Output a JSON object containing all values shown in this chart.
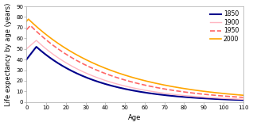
{
  "title": "",
  "xlabel": "Age",
  "ylabel": "Life expectancy by age (years)",
  "xlim": [
    0,
    110
  ],
  "ylim": [
    0,
    90
  ],
  "xticks": [
    0,
    10,
    20,
    30,
    40,
    50,
    60,
    70,
    80,
    90,
    100,
    110
  ],
  "yticks": [
    0,
    10,
    20,
    30,
    40,
    50,
    60,
    70,
    80,
    90
  ],
  "series": [
    {
      "label": "1850",
      "color": "#00008B",
      "linestyle": "solid",
      "linewidth": 1.5,
      "age0_val": 40,
      "peak_age": 5,
      "peak_val": 52,
      "decay_k": 0.032
    },
    {
      "label": "1900",
      "color": "#FFB6C1",
      "linestyle": "solid",
      "linewidth": 1.0,
      "age0_val": 50,
      "peak_age": 5,
      "peak_val": 58,
      "decay_k": 0.03
    },
    {
      "label": "1950",
      "color": "#FF6666",
      "linestyle": "dashed",
      "linewidth": 1.2,
      "age0_val": 68,
      "peak_age": 2,
      "peak_val": 72,
      "decay_k": 0.026
    },
    {
      "label": "2000",
      "color": "#FFA500",
      "linestyle": "solid",
      "linewidth": 1.2,
      "age0_val": 76,
      "peak_age": 1,
      "peak_val": 78,
      "decay_k": 0.023
    }
  ],
  "background_color": "#ffffff",
  "legend_fontsize": 5.5,
  "axis_fontsize": 6,
  "tick_fontsize": 5
}
